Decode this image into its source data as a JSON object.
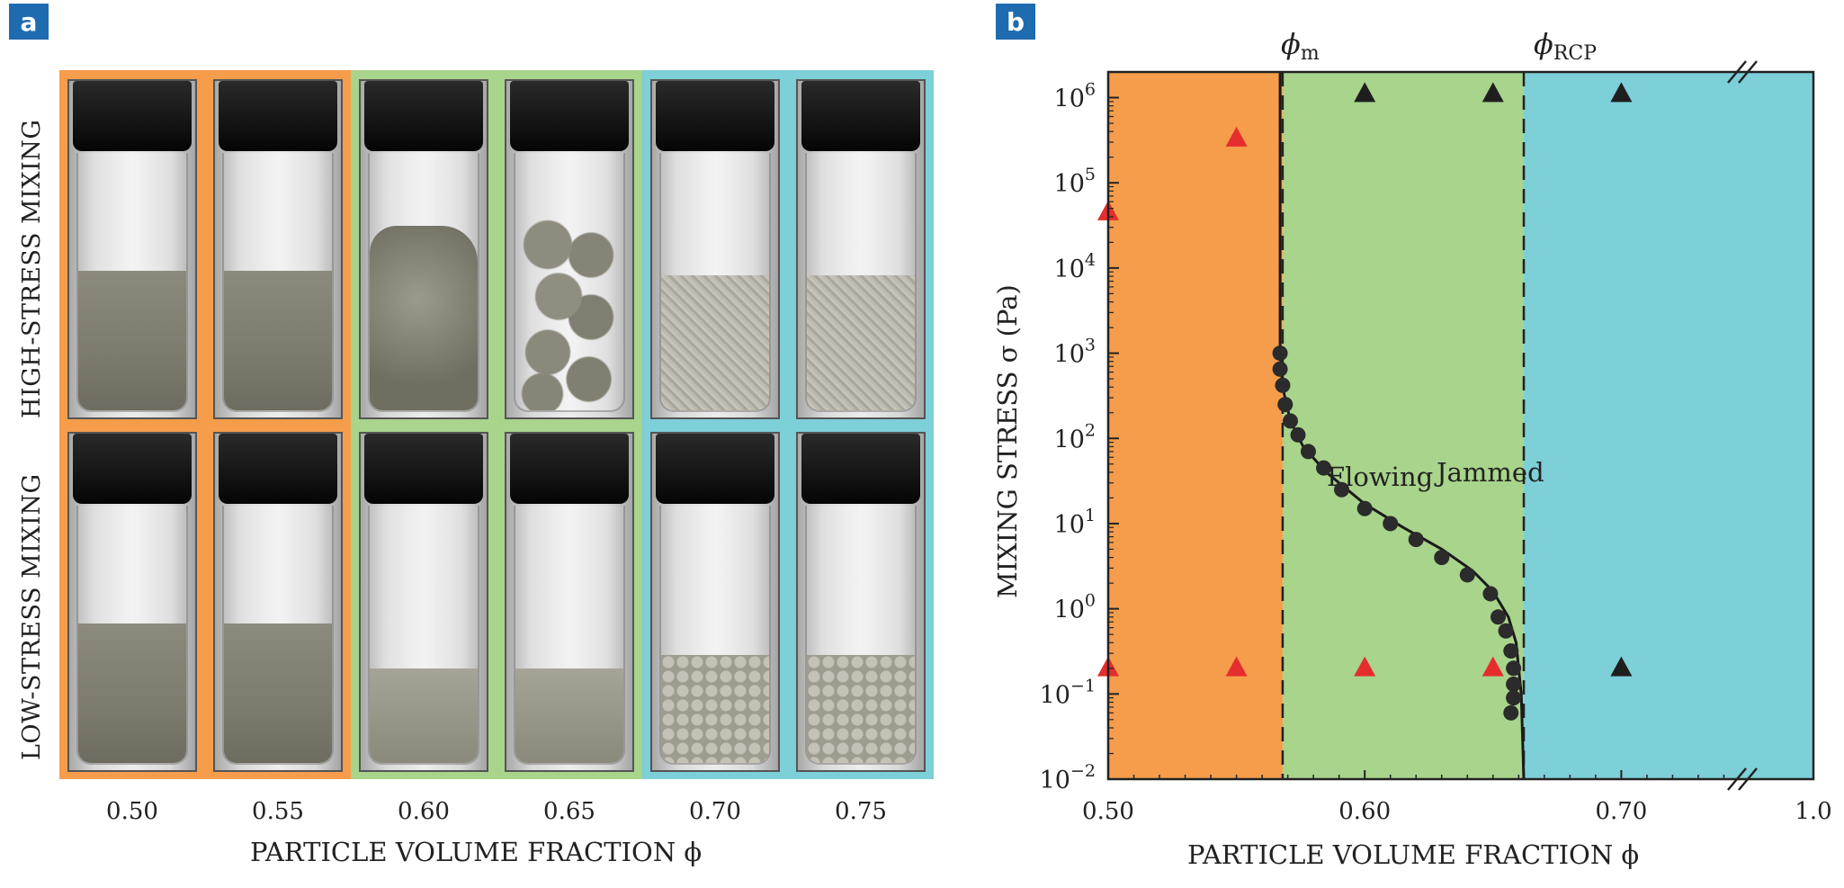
{
  "panel_a": {
    "badge": "a",
    "row_labels": [
      "HIGH-STRESS MIXING",
      "LOW-STRESS MIXING"
    ],
    "x_ticks": [
      "0.50",
      "0.55",
      "0.60",
      "0.65",
      "0.70",
      "0.75"
    ],
    "xlabel": "PARTICLE VOLUME FRACTION ϕ",
    "regime_colors": [
      "#f59d4a",
      "#f59d4a",
      "#a8d48b",
      "#a8d48b",
      "#7dcfd8",
      "#7dcfd8"
    ],
    "high_stress_states": [
      "liquid",
      "liquid",
      "paste",
      "balls",
      "powder",
      "powder"
    ],
    "low_stress_states": [
      "liquid",
      "liquid",
      "slump",
      "slump",
      "granule",
      "granule"
    ]
  },
  "panel_b": {
    "badge": "b",
    "top_labels": {
      "phi_m": "ϕm",
      "phi_rcp": "ϕRCP"
    },
    "region_labels": {
      "flowing": "Flowing",
      "jammed": "Jammed"
    },
    "region_colors": {
      "flowing": "#f59d4a",
      "transition": "#a8d48b",
      "jammed": "#7dcfd8"
    },
    "xlabel": "PARTICLE VOLUME FRACTION ϕ",
    "ylabel": "MIXING STRESS σ (Pa)"
  },
  "chart_data": {
    "type": "scatter",
    "x_axis": {
      "label": "PARTICLE VOLUME FRACTION ϕ",
      "range": [
        0.5,
        0.75
      ],
      "break_to": 1.0,
      "ticks": [
        "0.50",
        "0.60",
        "0.70",
        "1.0"
      ]
    },
    "y_axis": {
      "label": "MIXING STRESS σ (Pa)",
      "scale": "log",
      "range": [
        0.01,
        2000000
      ],
      "ticks": [
        {
          "base": "10",
          "exp": "6",
          "value": 1000000
        },
        {
          "base": "10",
          "exp": "5",
          "value": 100000
        },
        {
          "base": "10",
          "exp": "4",
          "value": 10000
        },
        {
          "base": "10",
          "exp": "3",
          "value": 1000
        },
        {
          "base": "10",
          "exp": "2",
          "value": 100
        },
        {
          "base": "10",
          "exp": "1",
          "value": 10
        },
        {
          "base": "10",
          "exp": "0",
          "value": 1
        },
        {
          "base": "10",
          "exp": "−1",
          "value": 0.1
        },
        {
          "base": "10",
          "exp": "−2",
          "value": 0.01
        }
      ]
    },
    "phi_m": 0.568,
    "phi_rcp": 0.662,
    "series": [
      {
        "marker": "circle",
        "color": "#2b2b2b",
        "points": [
          [
            0.567,
            1000
          ],
          [
            0.567,
            650
          ],
          [
            0.568,
            420
          ],
          [
            0.569,
            250
          ],
          [
            0.571,
            160
          ],
          [
            0.574,
            110
          ],
          [
            0.578,
            70
          ],
          [
            0.584,
            45
          ],
          [
            0.591,
            25
          ],
          [
            0.6,
            15
          ],
          [
            0.61,
            10
          ],
          [
            0.62,
            6.5
          ],
          [
            0.63,
            4.0
          ],
          [
            0.64,
            2.5
          ],
          [
            0.649,
            1.5
          ],
          [
            0.652,
            0.8
          ],
          [
            0.655,
            0.55
          ],
          [
            0.657,
            0.32
          ],
          [
            0.658,
            0.2
          ],
          [
            0.658,
            0.13
          ],
          [
            0.658,
            0.09
          ],
          [
            0.657,
            0.06
          ]
        ]
      },
      {
        "marker": "triangle",
        "color": "#e52d2d",
        "points": [
          [
            0.5,
            45000
          ],
          [
            0.55,
            330000
          ],
          [
            0.5,
            0.2
          ],
          [
            0.55,
            0.2
          ],
          [
            0.6,
            0.2
          ],
          [
            0.65,
            0.2
          ]
        ]
      },
      {
        "marker": "triangle",
        "color": "#1e1e1e",
        "points": [
          [
            0.6,
            1100000
          ],
          [
            0.65,
            1100000
          ],
          [
            0.7,
            1100000
          ],
          [
            0.7,
            0.2
          ]
        ]
      }
    ],
    "fit_curve": [
      [
        0.567,
        2000000
      ],
      [
        0.567,
        5000
      ],
      [
        0.567,
        1000
      ],
      [
        0.568,
        400
      ],
      [
        0.571,
        160
      ],
      [
        0.576,
        80
      ],
      [
        0.585,
        40
      ],
      [
        0.6,
        17
      ],
      [
        0.615,
        9
      ],
      [
        0.63,
        5
      ],
      [
        0.642,
        2.8
      ],
      [
        0.65,
        1.6
      ],
      [
        0.656,
        0.8
      ],
      [
        0.659,
        0.4
      ],
      [
        0.66,
        0.2
      ],
      [
        0.661,
        0.1
      ],
      [
        0.662,
        0.01
      ]
    ],
    "grid": false
  }
}
